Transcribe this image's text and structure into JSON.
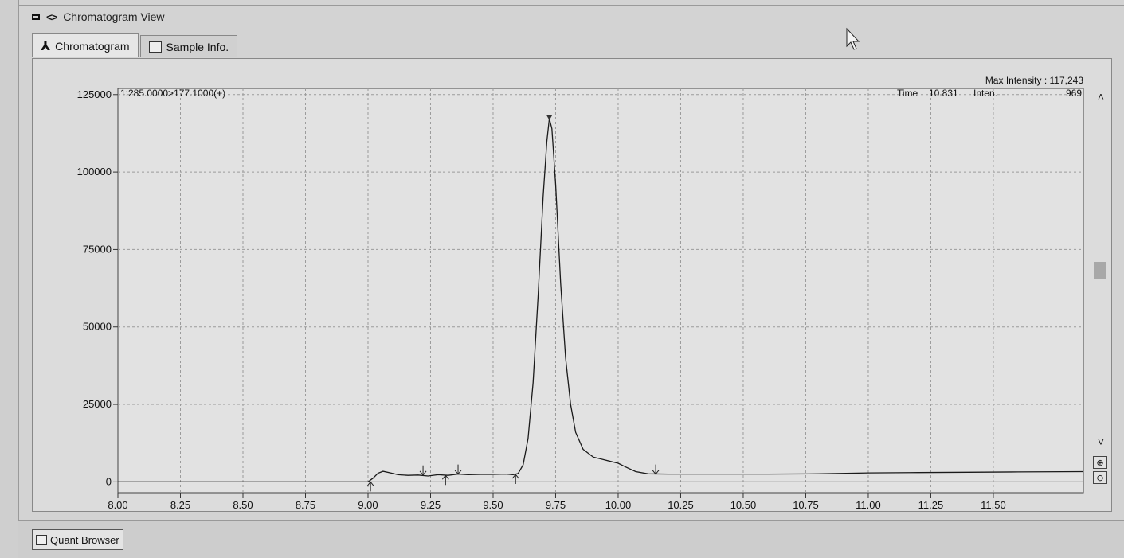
{
  "window": {
    "title": "Chromatogram View",
    "restore_icon": "restore-window-icon",
    "nav_icon": "code-brackets-icon"
  },
  "tabs": [
    {
      "label": "Chromatogram",
      "icon": "peak-icon",
      "active": true
    },
    {
      "label": "Sample Info.",
      "icon": "sample-sheet-icon",
      "active": false
    }
  ],
  "chart_header": {
    "channel": "1:285.0000>177.1000(+)",
    "max_intensity": "Max Intensity : 117,243",
    "time_label": "Time",
    "time_value": "10.831",
    "inten_label": "Inten.",
    "inten_value": "969"
  },
  "chart_data": {
    "type": "line",
    "xlim": [
      8.0,
      11.86
    ],
    "ylim": [
      -3500,
      127000
    ],
    "x_ticks": [
      8.0,
      8.25,
      8.5,
      8.75,
      9.0,
      9.25,
      9.5,
      9.75,
      10.0,
      10.25,
      10.5,
      10.75,
      11.0,
      11.25,
      11.5
    ],
    "x_tick_labels": [
      "8.00",
      "8.25",
      "8.50",
      "8.75",
      "9.00",
      "9.25",
      "9.50",
      "9.75",
      "10.00",
      "10.25",
      "10.50",
      "10.75",
      "11.00",
      "11.25",
      "11.50"
    ],
    "y_ticks": [
      0,
      25000,
      50000,
      75000,
      100000,
      125000
    ],
    "y_tick_labels": [
      "0",
      "25000",
      "50000",
      "75000",
      "100000",
      "125000"
    ],
    "grid": true,
    "series": [
      {
        "points": [
          [
            8.0,
            0
          ],
          [
            8.5,
            0
          ],
          [
            8.9,
            0
          ],
          [
            9.0,
            0
          ],
          [
            9.02,
            1200
          ],
          [
            9.04,
            2800
          ],
          [
            9.06,
            3400
          ],
          [
            9.09,
            2900
          ],
          [
            9.12,
            2300
          ],
          [
            9.16,
            2100
          ],
          [
            9.2,
            2200
          ],
          [
            9.24,
            1900
          ],
          [
            9.28,
            2300
          ],
          [
            9.32,
            2100
          ],
          [
            9.36,
            2500
          ],
          [
            9.4,
            2300
          ],
          [
            9.45,
            2400
          ],
          [
            9.5,
            2400
          ],
          [
            9.55,
            2500
          ],
          [
            9.58,
            2300
          ],
          [
            9.6,
            2700
          ],
          [
            9.62,
            5500
          ],
          [
            9.64,
            14000
          ],
          [
            9.66,
            32000
          ],
          [
            9.68,
            60000
          ],
          [
            9.7,
            92000
          ],
          [
            9.715,
            110000
          ],
          [
            9.725,
            117243
          ],
          [
            9.735,
            114000
          ],
          [
            9.75,
            96000
          ],
          [
            9.77,
            64000
          ],
          [
            9.79,
            40000
          ],
          [
            9.81,
            25000
          ],
          [
            9.83,
            16000
          ],
          [
            9.86,
            10500
          ],
          [
            9.9,
            8000
          ],
          [
            9.95,
            7000
          ],
          [
            10.0,
            6000
          ],
          [
            10.03,
            4800
          ],
          [
            10.07,
            3300
          ],
          [
            10.12,
            2600
          ],
          [
            10.2,
            2500
          ],
          [
            10.4,
            2500
          ],
          [
            10.6,
            2500
          ],
          [
            10.8,
            2600
          ],
          [
            11.0,
            2900
          ],
          [
            11.2,
            3000
          ],
          [
            11.4,
            3100
          ],
          [
            11.6,
            3200
          ],
          [
            11.86,
            3300
          ]
        ]
      }
    ],
    "baseline": {
      "x": [
        8.0,
        11.86
      ],
      "y": [
        0,
        0
      ]
    },
    "integration_markers": [
      {
        "x": 9.01,
        "y": 0,
        "dir": "up"
      },
      {
        "x": 9.22,
        "y": 2200,
        "dir": "down"
      },
      {
        "x": 9.31,
        "y": 2100,
        "dir": "up"
      },
      {
        "x": 9.36,
        "y": 2500,
        "dir": "down"
      },
      {
        "x": 9.59,
        "y": 2400,
        "dir": "up"
      },
      {
        "x": 10.15,
        "y": 2500,
        "dir": "down"
      }
    ],
    "apex_marker": {
      "x": 9.725,
      "y": 117243
    }
  },
  "scrollbar": {
    "up_icon": "chevron-up-icon",
    "down_icon": "chevron-down-icon",
    "zoom_in_icon": "zoom-in-icon",
    "zoom_out_icon": "zoom-out-icon"
  },
  "bottom": {
    "quant_browser_label": "Quant Browser",
    "quant_icon": "quant-browser-icon"
  },
  "colors": {
    "plot_bg": "#e2e2e2",
    "trace": "#1a1a1a",
    "grid": "#9b9b9b"
  }
}
